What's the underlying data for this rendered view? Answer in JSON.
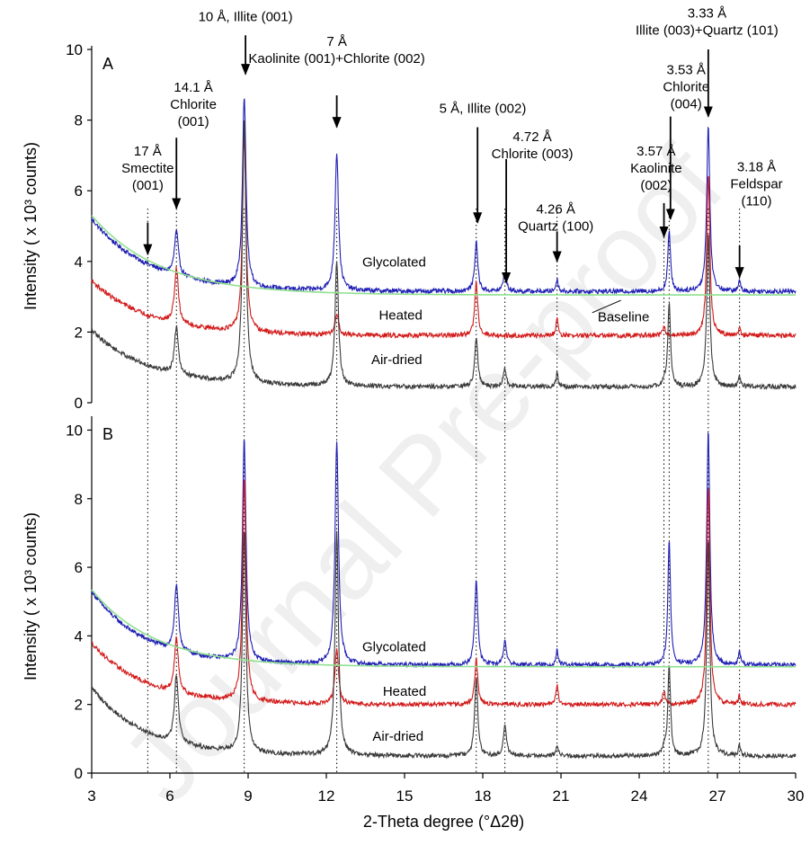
{
  "chart_data": {
    "type": "line",
    "xlabel": "2-Theta degree (°Δ2θ)",
    "xlim": [
      3,
      30
    ],
    "xticks": [
      3,
      6,
      9,
      12,
      15,
      18,
      21,
      24,
      27,
      30
    ],
    "watermark": "Journal Pre-proof",
    "colors": {
      "glycolated": "#1f1fb4",
      "heated": "#d21a1a",
      "airdried": "#3a3a3a",
      "baseline": "#8fe08f"
    },
    "reference_lines_x": [
      5.15,
      6.25,
      8.85,
      12.4,
      17.75,
      18.85,
      20.85,
      24.95,
      25.15,
      26.65,
      27.85
    ],
    "peaks": [
      {
        "x": 6.25,
        "w": 0.09
      },
      {
        "x": 8.85,
        "w": 0.08
      },
      {
        "x": 12.4,
        "w": 0.08
      },
      {
        "x": 17.75,
        "w": 0.07
      },
      {
        "x": 18.85,
        "w": 0.07
      },
      {
        "x": 20.85,
        "w": 0.05
      },
      {
        "x": 24.95,
        "w": 0.06
      },
      {
        "x": 25.15,
        "w": 0.06
      },
      {
        "x": 26.65,
        "w": 0.07
      },
      {
        "x": 27.85,
        "w": 0.05
      }
    ],
    "panels": [
      {
        "letter": "A",
        "ylabel": "Intensity ( x 10³ counts)",
        "ylim": [
          0,
          10
        ],
        "yticks": [
          0,
          2,
          4,
          6,
          8,
          10
        ],
        "series": [
          {
            "name": "Glycolated",
            "color_key": "glycolated",
            "base_start": 5.2,
            "base_end": 3.15,
            "decay": 2.2,
            "heights": [
              1.25,
              5.4,
              3.9,
              1.4,
              0.55,
              0.35,
              0.0,
              1.7,
              4.7,
              0.3
            ]
          },
          {
            "name": "Heated",
            "color_key": "heated",
            "base_start": 3.45,
            "base_end": 1.9,
            "decay": 2.2,
            "heights": [
              1.55,
              5.6,
              0.6,
              1.5,
              0.0,
              0.5,
              0.25,
              0.0,
              4.6,
              0.2
            ]
          },
          {
            "name": "Air-dried",
            "color_key": "airdried",
            "base_start": 2.05,
            "base_end": 0.45,
            "decay": 2.2,
            "heights": [
              1.35,
              7.5,
              3.5,
              1.4,
              0.5,
              0.4,
              0.15,
              2.4,
              4.35,
              0.3
            ]
          },
          {
            "name": "Baseline",
            "color_key": "baseline",
            "kind": "baseline",
            "base_start": 5.3,
            "base_end": 3.05,
            "decay": 2.6
          }
        ],
        "trace_labels": [
          {
            "text": "Glycolated",
            "x": 14.6,
            "y": 3.85
          },
          {
            "text": "Heated",
            "x": 14.85,
            "y": 2.35
          },
          {
            "text": "Air-dried",
            "x": 14.7,
            "y": 1.1
          },
          {
            "text": "Baseline",
            "x": 23.4,
            "y": 2.3
          }
        ],
        "annotations": [
          {
            "lines": [
              "17 Å",
              "Smectite",
              "(001)"
            ],
            "x": 5.15,
            "y_text": 7.0,
            "y_arrow_from": 5.1,
            "y_arrow_to": 4.2
          },
          {
            "lines": [
              "14.1 Å",
              "Chlorite",
              "(001)"
            ],
            "x": 6.9,
            "y_text": 8.8,
            "x_arrow": 6.25,
            "y_arrow_from": 7.5,
            "y_arrow_to": 5.5
          },
          {
            "lines": [
              "10 Å, Illite (001)"
            ],
            "x": 8.9,
            "y_text": 10.8,
            "x_arrow": 8.9,
            "y_arrow_from": 10.4,
            "y_arrow_to": 9.3
          },
          {
            "lines": [
              "7 Å",
              "Kaolinite (001)+Chlorite (002)"
            ],
            "x": 12.4,
            "y_text": 10.1,
            "x_arrow": 12.4,
            "y_arrow_from": 8.7,
            "y_arrow_to": 7.8
          },
          {
            "lines": [
              "5 Å, Illite (002)"
            ],
            "x": 18.0,
            "y_text": 8.2,
            "x_arrow": 17.8,
            "y_arrow_from": 7.8,
            "y_arrow_to": 5.1
          },
          {
            "lines": [
              "4.72 Å",
              "Chlorite (003)"
            ],
            "x": 19.9,
            "y_text": 7.4,
            "x_arrow": 18.9,
            "y_arrow_from": 6.9,
            "y_arrow_to": 3.4
          },
          {
            "lines": [
              "4.26 Å",
              "Quartz (100)"
            ],
            "x": 20.8,
            "y_text": 5.35,
            "x_arrow": 20.85,
            "y_arrow_from": 4.85,
            "y_arrow_to": 4.0
          },
          {
            "lines": [
              "3.57 Å",
              "Kaolinite",
              "(002)"
            ],
            "x": 24.65,
            "y_text": 7.0,
            "x_arrow": 24.95,
            "y_arrow_from": 5.65,
            "y_arrow_to": 4.7
          },
          {
            "lines": [
              "3.53 Å",
              "Chlorite",
              "(004)"
            ],
            "x": 25.8,
            "y_text": 9.3,
            "x_arrow": 25.2,
            "y_arrow_from": 8.1,
            "y_arrow_to": 5.2
          },
          {
            "lines": [
              "3.33 Å",
              "Illite (003)+Quartz (101)"
            ],
            "x": 26.6,
            "y_text": 10.9,
            "x_arrow": 26.65,
            "y_arrow_from": 10.0,
            "y_arrow_to": 8.1
          },
          {
            "lines": [
              "3.18 Å",
              "Feldspar",
              "(110)"
            ],
            "x": 28.5,
            "y_text": 6.55,
            "x_arrow": 27.85,
            "y_arrow_from": 4.45,
            "y_arrow_to": 3.55
          }
        ]
      },
      {
        "letter": "B",
        "ylabel": "Intensity ( x 10³ counts)",
        "ylim": [
          0,
          10.3
        ],
        "yticks": [
          0,
          2,
          4,
          6,
          8,
          10
        ],
        "series": [
          {
            "name": "Glycolated",
            "color_key": "glycolated",
            "base_start": 5.3,
            "base_end": 3.15,
            "decay": 2.0,
            "heights": [
              1.9,
              6.5,
              6.5,
              2.5,
              0.7,
              0.45,
              0.0,
              3.65,
              6.85,
              0.35
            ]
          },
          {
            "name": "Heated",
            "color_key": "heated",
            "base_start": 3.8,
            "base_end": 2.0,
            "decay": 2.0,
            "heights": [
              1.6,
              6.5,
              1.6,
              1.3,
              0.0,
              0.6,
              0.4,
              0.0,
              6.4,
              0.25
            ]
          },
          {
            "name": "Air-dried",
            "color_key": "airdried",
            "base_start": 2.5,
            "base_end": 0.5,
            "decay": 2.0,
            "heights": [
              2.0,
              6.5,
              6.5,
              2.3,
              0.9,
              0.3,
              0.2,
              2.7,
              6.3,
              0.3
            ]
          },
          {
            "name": "Baseline",
            "color_key": "baseline",
            "kind": "baseline",
            "base_start": 5.35,
            "base_end": 3.1,
            "decay": 2.4
          }
        ],
        "trace_labels": [
          {
            "text": "Glycolated",
            "x": 14.6,
            "y": 3.55
          },
          {
            "text": "Heated",
            "x": 15.0,
            "y": 2.25
          },
          {
            "text": "Air-dried",
            "x": 14.75,
            "y": 0.95
          }
        ],
        "annotations": []
      }
    ]
  }
}
